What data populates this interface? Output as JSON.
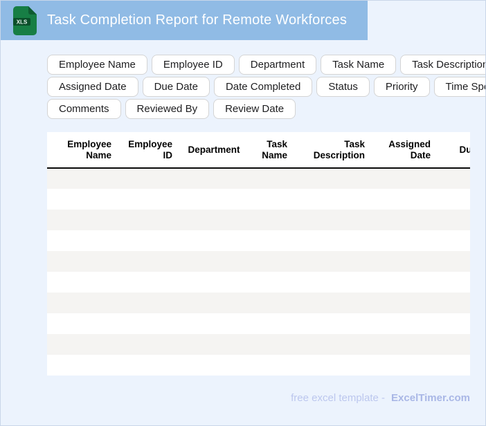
{
  "header": {
    "title": "Task Completion Report for Remote Workforces",
    "file_type": "XLS"
  },
  "chips": [
    "Employee Name",
    "Employee ID",
    "Department",
    "Task Name",
    "Task Description",
    "Assigned Date",
    "Due Date",
    "Date Completed",
    "Status",
    "Priority",
    "Time Spent (hours)",
    "Comments",
    "Reviewed By",
    "Review Date"
  ],
  "table": {
    "columns": [
      "Employee Name",
      "Employee ID",
      "Department",
      "Task Name",
      "Task Description",
      "Assigned Date",
      "Due Date"
    ],
    "empty_row_count": 10
  },
  "footer": {
    "text": "free excel template -",
    "brand": "ExcelTimer.com"
  },
  "colors": {
    "header_bar": "#90bbe5",
    "page_background": "#ecf3fd",
    "row_alternate": "#f5f4f2",
    "icon_green": "#177e45",
    "icon_dark_green": "#0b4f2a",
    "footer_text": "#bcc7ee",
    "footer_brand": "#a9b7e6"
  }
}
